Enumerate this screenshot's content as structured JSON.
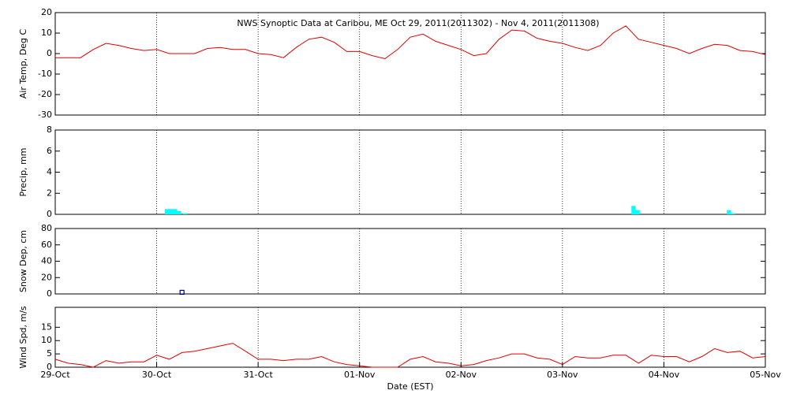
{
  "chart_data": [
    {
      "type": "line",
      "title": "NWS Synoptic Data at Caribou, ME   Oct 29, 2011(2011302) - Nov  4, 2011(2011308)",
      "y_label": "Air Temp, Deg C",
      "color": "#e00000",
      "x": [
        0,
        0.125,
        0.25,
        0.375,
        0.5,
        0.625,
        0.75,
        0.875,
        1,
        1.125,
        1.25,
        1.375,
        1.5,
        1.625,
        1.75,
        1.875,
        2,
        2.125,
        2.25,
        2.375,
        2.5,
        2.625,
        2.75,
        2.875,
        3,
        3.125,
        3.25,
        3.375,
        3.5,
        3.625,
        3.75,
        3.875,
        4,
        4.125,
        4.25,
        4.375,
        4.5,
        4.625,
        4.75,
        4.875,
        5,
        5.125,
        5.25,
        5.375,
        5.5,
        5.625,
        5.75,
        5.875,
        6,
        6.125,
        6.25,
        6.375,
        6.5,
        6.625,
        6.75,
        6.875,
        7
      ],
      "values": [
        -2,
        -2,
        -2,
        2,
        5,
        4,
        2.5,
        1.5,
        2,
        0,
        0,
        0,
        2.5,
        3,
        2,
        2,
        0,
        -0.5,
        -2,
        3,
        7,
        8,
        5.5,
        1,
        1,
        -1,
        -2.5,
        2,
        8,
        9.5,
        6,
        4,
        2,
        -1,
        0,
        7,
        11.5,
        11,
        7.5,
        6,
        5,
        3,
        1.5,
        4,
        10,
        13.5,
        7,
        5.5,
        4,
        2.5,
        0,
        2.5,
        4.5,
        4,
        1.5,
        1,
        -0.5
      ],
      "xlim": [
        0,
        7
      ],
      "ylim": [
        -30,
        20
      ],
      "yticks": [
        -30,
        -20,
        -10,
        0,
        10,
        20
      ],
      "grid": true
    },
    {
      "type": "bar",
      "y_label": "Precip, mm",
      "color": "#00ffff",
      "x": [
        1.08,
        1.12,
        1.16,
        1.2,
        1.26,
        5.68,
        5.72,
        6.62,
        6.66
      ],
      "values": [
        0.5,
        0.5,
        0.5,
        0.3,
        0.1,
        0.8,
        0.4,
        0.4,
        0.1
      ],
      "xlim": [
        0,
        7
      ],
      "ylim": [
        0,
        8
      ],
      "yticks": [
        0,
        2,
        4,
        6,
        8
      ],
      "grid": true
    },
    {
      "type": "scatter",
      "y_label": "Snow Dep, cm",
      "color": "#00008b",
      "x": [
        1.25
      ],
      "values": [
        2
      ],
      "xlim": [
        0,
        7
      ],
      "ylim": [
        0,
        80
      ],
      "yticks": [
        0,
        20,
        40,
        60,
        80
      ],
      "grid": true
    },
    {
      "type": "line",
      "y_label": "Wind Spd, m/s",
      "x_label": "Date (EST)",
      "color": "#e00000",
      "x": [
        0,
        0.125,
        0.25,
        0.375,
        0.5,
        0.625,
        0.75,
        0.875,
        1,
        1.125,
        1.25,
        1.375,
        1.5,
        1.625,
        1.75,
        1.875,
        2,
        2.125,
        2.25,
        2.375,
        2.5,
        2.625,
        2.75,
        2.875,
        3,
        3.125,
        3.25,
        3.375,
        3.5,
        3.625,
        3.75,
        3.875,
        4,
        4.125,
        4.25,
        4.375,
        4.5,
        4.625,
        4.75,
        4.875,
        5,
        5.125,
        5.25,
        5.375,
        5.5,
        5.625,
        5.75,
        5.875,
        6,
        6.125,
        6.25,
        6.375,
        6.5,
        6.625,
        6.75,
        6.875,
        7
      ],
      "values": [
        3,
        1.5,
        1,
        0,
        2.5,
        1.5,
        2,
        2,
        4.5,
        3,
        5.5,
        6,
        7,
        8,
        9,
        6,
        3,
        3,
        2.5,
        3,
        3,
        4,
        2,
        1,
        0.5,
        0,
        0,
        0,
        3,
        4,
        2,
        1.5,
        0.5,
        1,
        2.5,
        3.5,
        5,
        5,
        3.5,
        3,
        1,
        4,
        3.5,
        3.5,
        4.5,
        4.5,
        1.5,
        4.5,
        4,
        4,
        2,
        4,
        7,
        5.5,
        6,
        3.5,
        4
      ],
      "xlim": [
        0,
        7
      ],
      "ylim": [
        0,
        22.5
      ],
      "yticks": [
        0,
        5,
        10,
        15
      ],
      "xticks": [
        {
          "value": 0,
          "label": "29-Oct"
        },
        {
          "value": 1,
          "label": "30-Oct"
        },
        {
          "value": 2,
          "label": "31-Oct"
        },
        {
          "value": 3,
          "label": "01-Nov"
        },
        {
          "value": 4,
          "label": "02-Nov"
        },
        {
          "value": 5,
          "label": "03-Nov"
        },
        {
          "value": 6,
          "label": "04-Nov"
        },
        {
          "value": 7,
          "label": "05-Nov"
        }
      ],
      "grid": true
    }
  ]
}
